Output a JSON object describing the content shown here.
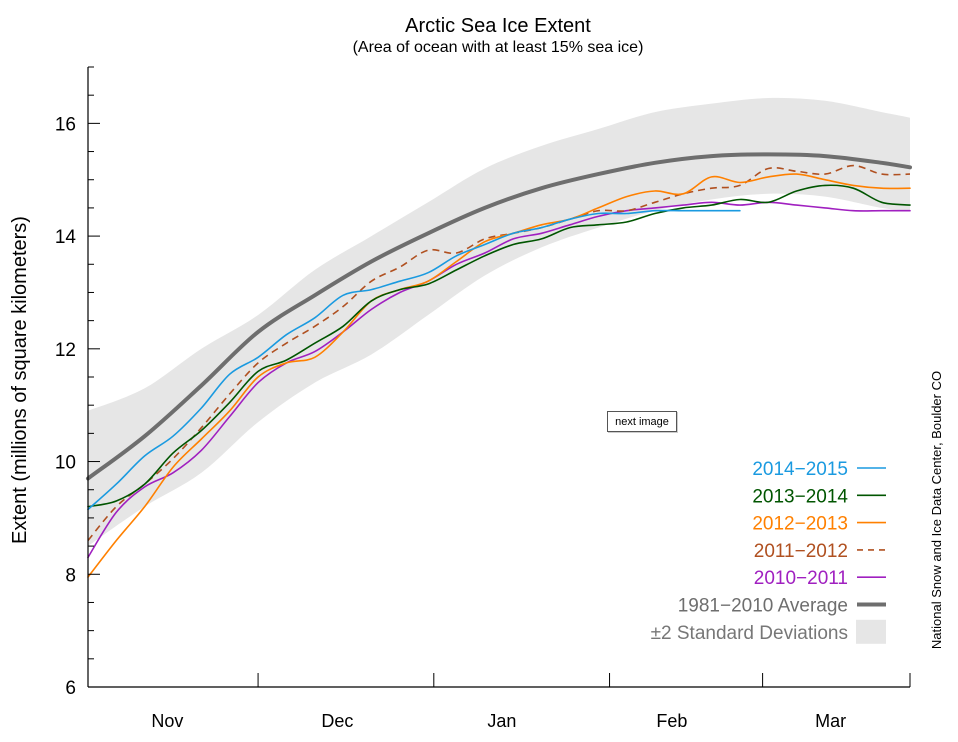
{
  "chart_data": {
    "type": "line",
    "title": "Arctic Sea Ice Extent",
    "subtitle": "(Area of ocean with at least 15% sea ice)",
    "ylabel": "Extent (millions of square kilometers)",
    "xlabel": "",
    "credit": "National Snow and Ice Data Center, Boulder CO",
    "ylim": [
      6,
      17
    ],
    "xlim": [
      0,
      145
    ],
    "y_ticks": [
      6,
      8,
      10,
      12,
      14,
      16
    ],
    "x_tick_days": [
      0,
      30,
      61,
      92,
      119,
      145
    ],
    "months": [
      {
        "label": "Nov",
        "day": 14
      },
      {
        "label": "Dec",
        "day": 44
      },
      {
        "label": "Jan",
        "day": 73
      },
      {
        "label": "Feb",
        "day": 103
      },
      {
        "label": "Mar",
        "day": 131
      }
    ],
    "band": {
      "name": "±2 Standard Deviations",
      "color": "#e6e6e6",
      "x": [
        0,
        10,
        20,
        30,
        40,
        50,
        60,
        70,
        80,
        90,
        100,
        110,
        120,
        130,
        140,
        145
      ],
      "upper": [
        10.9,
        11.3,
        12.0,
        12.6,
        13.4,
        14.0,
        14.6,
        15.2,
        15.6,
        15.9,
        16.2,
        16.35,
        16.45,
        16.4,
        16.2,
        16.1
      ],
      "lower": [
        8.5,
        9.2,
        9.8,
        10.7,
        11.4,
        11.9,
        12.6,
        13.3,
        13.8,
        14.15,
        14.45,
        14.65,
        14.75,
        14.7,
        14.5,
        14.45
      ]
    },
    "series": [
      {
        "name": "1981−2010 Average",
        "color": "#6e6e6e",
        "style": "thick",
        "x": [
          0,
          10,
          20,
          30,
          40,
          50,
          60,
          70,
          80,
          90,
          100,
          110,
          120,
          130,
          140,
          145
        ],
        "values": [
          9.7,
          10.45,
          11.35,
          12.3,
          12.95,
          13.55,
          14.05,
          14.5,
          14.85,
          15.1,
          15.3,
          15.42,
          15.45,
          15.42,
          15.3,
          15.22
        ]
      },
      {
        "name": "2010−2011",
        "color": "#a020c0",
        "style": "solid",
        "x": [
          0,
          5,
          10,
          15,
          20,
          25,
          30,
          35,
          40,
          45,
          50,
          55,
          60,
          65,
          70,
          75,
          80,
          85,
          90,
          95,
          100,
          105,
          110,
          115,
          120,
          125,
          130,
          135,
          140,
          145
        ],
        "values": [
          8.3,
          9.1,
          9.55,
          9.8,
          10.2,
          10.8,
          11.4,
          11.75,
          11.95,
          12.3,
          12.7,
          13.0,
          13.2,
          13.5,
          13.7,
          13.95,
          14.05,
          14.2,
          14.35,
          14.45,
          14.5,
          14.55,
          14.6,
          14.55,
          14.6,
          14.55,
          14.5,
          14.45,
          14.45,
          14.45
        ]
      },
      {
        "name": "2011−2012",
        "color": "#b05020",
        "style": "dashed",
        "x": [
          0,
          5,
          10,
          15,
          20,
          25,
          30,
          35,
          40,
          45,
          50,
          55,
          60,
          65,
          70,
          75,
          80,
          85,
          90,
          95,
          100,
          105,
          110,
          115,
          120,
          125,
          130,
          135,
          140,
          145
        ],
        "values": [
          8.6,
          9.2,
          9.6,
          10.05,
          10.6,
          11.2,
          11.75,
          12.1,
          12.4,
          12.75,
          13.2,
          13.45,
          13.75,
          13.7,
          13.95,
          14.05,
          14.15,
          14.3,
          14.45,
          14.45,
          14.6,
          14.75,
          14.85,
          14.9,
          15.2,
          15.15,
          15.1,
          15.25,
          15.1,
          15.1
        ]
      },
      {
        "name": "2012−2013",
        "color": "#ff8000",
        "style": "solid",
        "x": [
          0,
          5,
          10,
          15,
          20,
          25,
          30,
          35,
          40,
          45,
          50,
          55,
          60,
          65,
          70,
          75,
          80,
          85,
          90,
          95,
          100,
          105,
          110,
          115,
          120,
          125,
          130,
          135,
          140,
          145
        ],
        "values": [
          7.95,
          8.6,
          9.2,
          9.9,
          10.4,
          10.9,
          11.5,
          11.75,
          11.85,
          12.3,
          12.85,
          13.05,
          13.2,
          13.55,
          13.9,
          14.05,
          14.2,
          14.3,
          14.5,
          14.7,
          14.8,
          14.75,
          15.05,
          14.95,
          15.05,
          15.1,
          15.0,
          14.9,
          14.85,
          14.85
        ]
      },
      {
        "name": "2013−2014",
        "color": "#005500",
        "style": "solid",
        "x": [
          0,
          5,
          10,
          15,
          20,
          25,
          30,
          35,
          40,
          45,
          50,
          55,
          60,
          65,
          70,
          75,
          80,
          85,
          90,
          95,
          100,
          105,
          110,
          115,
          120,
          125,
          130,
          135,
          140,
          145
        ],
        "values": [
          9.2,
          9.3,
          9.6,
          10.15,
          10.55,
          11.05,
          11.6,
          11.8,
          12.1,
          12.4,
          12.85,
          13.05,
          13.15,
          13.4,
          13.65,
          13.85,
          13.95,
          14.15,
          14.2,
          14.25,
          14.4,
          14.5,
          14.55,
          14.65,
          14.6,
          14.8,
          14.9,
          14.85,
          14.6,
          14.55
        ]
      },
      {
        "name": "2014−2015",
        "color": "#1a9ae0",
        "style": "solid",
        "x": [
          0,
          5,
          10,
          15,
          20,
          25,
          30,
          35,
          40,
          45,
          50,
          55,
          60,
          65,
          70,
          75,
          80,
          85,
          90,
          95,
          100,
          105,
          110,
          115
        ],
        "values": [
          9.15,
          9.6,
          10.1,
          10.45,
          10.95,
          11.55,
          11.85,
          12.25,
          12.55,
          12.95,
          13.05,
          13.2,
          13.35,
          13.65,
          13.85,
          14.05,
          14.15,
          14.3,
          14.4,
          14.4,
          14.45,
          14.45,
          14.45,
          14.45
        ]
      }
    ]
  },
  "legend": {
    "items": [
      {
        "label": "2014−2015",
        "color": "#1a9ae0",
        "style": "solid"
      },
      {
        "label": "2013−2014",
        "color": "#005500",
        "style": "solid"
      },
      {
        "label": "2012−2013",
        "color": "#ff8000",
        "style": "solid"
      },
      {
        "label": "2011−2012",
        "color": "#b05020",
        "style": "dashed"
      },
      {
        "label": "2010−2011",
        "color": "#a020c0",
        "style": "solid"
      },
      {
        "label": "1981−2010 Average",
        "color": "#6e6e6e",
        "style": "thick"
      },
      {
        "label": "±2 Standard Deviations",
        "color": "#777777",
        "style": "band"
      }
    ]
  },
  "buttons": {
    "next_image": "next image"
  }
}
